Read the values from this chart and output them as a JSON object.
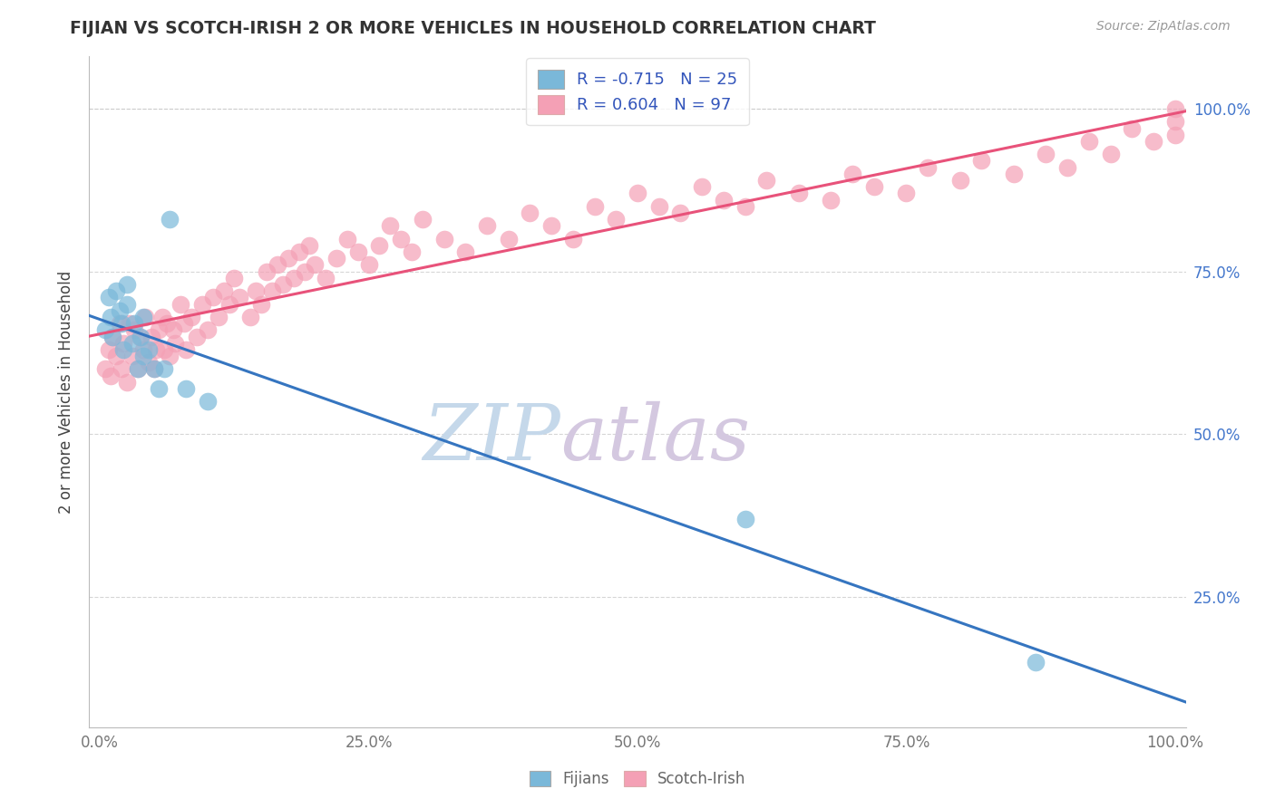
{
  "title": "FIJIAN VS SCOTCH-IRISH 2 OR MORE VEHICLES IN HOUSEHOLD CORRELATION CHART",
  "source_text": "Source: ZipAtlas.com",
  "ylabel": "2 or more Vehicles in Household",
  "xlim": [
    -0.01,
    1.01
  ],
  "ylim": [
    0.05,
    1.08
  ],
  "xticks": [
    0.0,
    0.25,
    0.5,
    0.75,
    1.0
  ],
  "yticks": [
    0.25,
    0.5,
    0.75,
    1.0
  ],
  "xtick_labels": [
    "0.0%",
    "25.0%",
    "50.0%",
    "75.0%",
    "100.0%"
  ],
  "ytick_labels": [
    "25.0%",
    "50.0%",
    "75.0%",
    "100.0%"
  ],
  "fijian_color": "#7ab8d9",
  "scotchirish_color": "#f4a0b5",
  "fijian_R": -0.715,
  "fijian_N": 25,
  "scotchirish_R": 0.604,
  "scotchirish_N": 97,
  "fijian_line_color": "#3575c0",
  "scotchirish_line_color": "#e8527a",
  "watermark_zip": "ZIP",
  "watermark_atlas": "atlas",
  "watermark_color_zip": "#c5d8ea",
  "watermark_color_atlas": "#d4c8e0",
  "legend_label_fijian": "Fijians",
  "legend_label_scotchirish": "Scotch-Irish",
  "fijian_x": [
    0.005,
    0.008,
    0.01,
    0.012,
    0.015,
    0.018,
    0.02,
    0.022,
    0.025,
    0.025,
    0.03,
    0.032,
    0.035,
    0.038,
    0.04,
    0.04,
    0.045,
    0.05,
    0.055,
    0.06,
    0.065,
    0.08,
    0.1,
    0.6,
    0.87
  ],
  "fijian_y": [
    0.66,
    0.71,
    0.68,
    0.65,
    0.72,
    0.69,
    0.67,
    0.63,
    0.7,
    0.73,
    0.64,
    0.67,
    0.6,
    0.65,
    0.62,
    0.68,
    0.63,
    0.6,
    0.57,
    0.6,
    0.83,
    0.57,
    0.55,
    0.37,
    0.15
  ],
  "scotchirish_x": [
    0.005,
    0.008,
    0.01,
    0.012,
    0.015,
    0.018,
    0.02,
    0.022,
    0.025,
    0.028,
    0.03,
    0.032,
    0.035,
    0.037,
    0.04,
    0.042,
    0.045,
    0.048,
    0.05,
    0.052,
    0.055,
    0.058,
    0.06,
    0.062,
    0.065,
    0.068,
    0.07,
    0.075,
    0.078,
    0.08,
    0.085,
    0.09,
    0.095,
    0.1,
    0.105,
    0.11,
    0.115,
    0.12,
    0.125,
    0.13,
    0.14,
    0.145,
    0.15,
    0.155,
    0.16,
    0.165,
    0.17,
    0.175,
    0.18,
    0.185,
    0.19,
    0.195,
    0.2,
    0.21,
    0.22,
    0.23,
    0.24,
    0.25,
    0.26,
    0.27,
    0.28,
    0.29,
    0.3,
    0.32,
    0.34,
    0.36,
    0.38,
    0.4,
    0.42,
    0.44,
    0.46,
    0.48,
    0.5,
    0.52,
    0.54,
    0.56,
    0.58,
    0.6,
    0.62,
    0.65,
    0.68,
    0.7,
    0.72,
    0.75,
    0.77,
    0.8,
    0.82,
    0.85,
    0.88,
    0.9,
    0.92,
    0.94,
    0.96,
    0.98,
    1.0,
    1.0,
    1.0
  ],
  "scotchirish_y": [
    0.6,
    0.63,
    0.59,
    0.65,
    0.62,
    0.67,
    0.6,
    0.64,
    0.58,
    0.67,
    0.62,
    0.66,
    0.6,
    0.65,
    0.63,
    0.68,
    0.61,
    0.65,
    0.6,
    0.63,
    0.66,
    0.68,
    0.63,
    0.67,
    0.62,
    0.66,
    0.64,
    0.7,
    0.67,
    0.63,
    0.68,
    0.65,
    0.7,
    0.66,
    0.71,
    0.68,
    0.72,
    0.7,
    0.74,
    0.71,
    0.68,
    0.72,
    0.7,
    0.75,
    0.72,
    0.76,
    0.73,
    0.77,
    0.74,
    0.78,
    0.75,
    0.79,
    0.76,
    0.74,
    0.77,
    0.8,
    0.78,
    0.76,
    0.79,
    0.82,
    0.8,
    0.78,
    0.83,
    0.8,
    0.78,
    0.82,
    0.8,
    0.84,
    0.82,
    0.8,
    0.85,
    0.83,
    0.87,
    0.85,
    0.84,
    0.88,
    0.86,
    0.85,
    0.89,
    0.87,
    0.86,
    0.9,
    0.88,
    0.87,
    0.91,
    0.89,
    0.92,
    0.9,
    0.93,
    0.91,
    0.95,
    0.93,
    0.97,
    0.95,
    0.98,
    1.0,
    0.96
  ]
}
